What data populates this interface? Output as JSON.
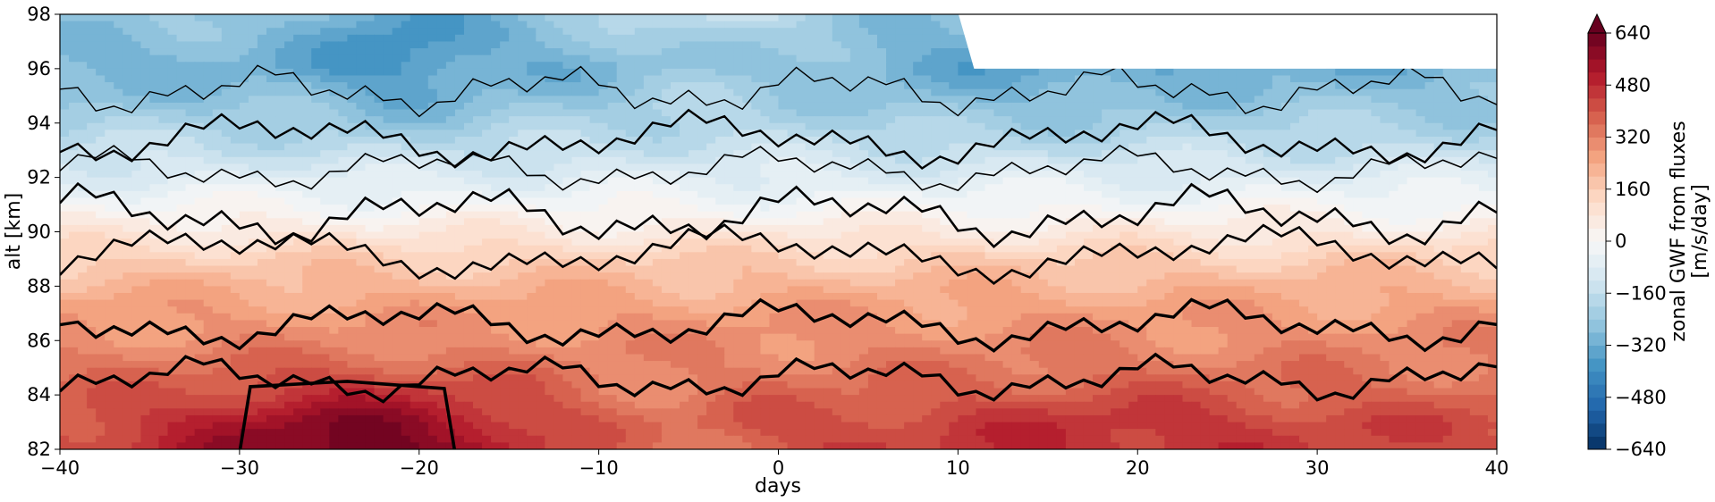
{
  "chart_data": {
    "type": "heatmap",
    "title": "",
    "xlabel": "days",
    "ylabel": "alt [km]",
    "xlim": [
      -40,
      40
    ],
    "ylim": [
      82,
      98
    ],
    "x_ticks": [
      -40,
      -30,
      -20,
      -10,
      0,
      10,
      20,
      30,
      40
    ],
    "x_tick_labels": [
      "−40",
      "−30",
      "−20",
      "−10",
      "0",
      "10",
      "20",
      "30",
      "40"
    ],
    "y_ticks": [
      82,
      84,
      86,
      88,
      90,
      92,
      94,
      96,
      98
    ],
    "y_tick_labels": [
      "82",
      "84",
      "86",
      "88",
      "90",
      "92",
      "94",
      "96",
      "98"
    ],
    "grid": false,
    "colorbar": {
      "label_line1": "zonal GWF from fluxes",
      "label_line2": "[m/s/day]",
      "range": [
        -640,
        640
      ],
      "ticks": [
        -640,
        -480,
        -320,
        -160,
        0,
        160,
        320,
        480,
        640
      ],
      "tick_labels": [
        "−640",
        "−480",
        "−320",
        "−160",
        "0",
        "160",
        "320",
        "480",
        "640"
      ],
      "colormap": "RdBu_r",
      "extend": "max"
    },
    "field_summary": {
      "x": [
        -40,
        -30,
        -20,
        -10,
        0,
        10,
        20,
        30,
        40
      ],
      "z_profile_alt": [
        82,
        83,
        84,
        85,
        86,
        87,
        88,
        89,
        90,
        91,
        92,
        93,
        94,
        95,
        96,
        97,
        98
      ],
      "z_profile_value": [
        420,
        420,
        370,
        330,
        300,
        270,
        220,
        160,
        70,
        -10,
        -80,
        -150,
        -210,
        -260,
        -300,
        -280,
        -240
      ],
      "strong_positive_core": {
        "x_range": [
          -30,
          -18
        ],
        "alt_range": [
          82,
          84.5
        ],
        "value": 600
      },
      "strong_negative_core": {
        "x_range": [
          -24,
          -18
        ],
        "alt_range": [
          95,
          98
        ],
        "value": -400
      },
      "masked_region": {
        "x_range": [
          10,
          40
        ],
        "alt_range": [
          96,
          98
        ]
      }
    }
  }
}
